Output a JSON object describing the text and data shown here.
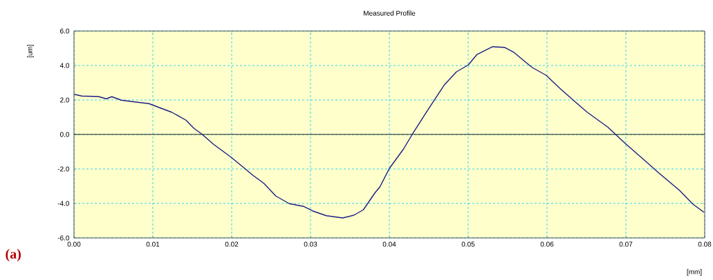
{
  "chart_data": {
    "type": "line",
    "title": "Measured Profile",
    "xlabel": "[mm]",
    "ylabel": "[um]",
    "annotations": [
      "(a)"
    ],
    "x": [
      0,
      0.001,
      0.0031,
      0.0041,
      0.0048,
      0.006,
      0.0077,
      0.0095,
      0.011,
      0.0124,
      0.0142,
      0.0152,
      0.0162,
      0.0177,
      0.0199,
      0.0215,
      0.0227,
      0.0241,
      0.0256,
      0.0273,
      0.0291,
      0.0303,
      0.032,
      0.0341,
      0.0355,
      0.0367,
      0.0382,
      0.0388,
      0.04,
      0.0418,
      0.0429,
      0.0447,
      0.047,
      0.0485,
      0.05,
      0.0511,
      0.0531,
      0.0546,
      0.0558,
      0.0581,
      0.0599,
      0.0616,
      0.0634,
      0.0651,
      0.0677,
      0.0699,
      0.0724,
      0.0742,
      0.0768,
      0.0785,
      0.0799
    ],
    "series": [
      {
        "color": "#1c1c84",
        "values": [
          2.33,
          2.23,
          2.2,
          2.07,
          2.19,
          1.99,
          1.89,
          1.79,
          1.53,
          1.29,
          0.83,
          0.36,
          0.03,
          -0.57,
          -1.31,
          -1.91,
          -2.37,
          -2.84,
          -3.57,
          -4.01,
          -4.17,
          -4.44,
          -4.71,
          -4.84,
          -4.68,
          -4.37,
          -3.37,
          -3.04,
          -1.97,
          -0.84,
          0,
          1.29,
          2.89,
          3.63,
          4.03,
          4.63,
          5.09,
          5.05,
          4.76,
          3.89,
          3.43,
          2.69,
          1.96,
          1.29,
          0.43,
          -0.51,
          -1.51,
          -2.24,
          -3.24,
          -4.04,
          -4.51
        ]
      }
    ],
    "xlim": [
      0,
      0.08
    ],
    "ylim": [
      -6,
      6
    ],
    "xticks": [
      {
        "value": 0,
        "label": "0.00"
      },
      0.01,
      0.02,
      0.03,
      0.04,
      0.05,
      0.06,
      0.07,
      0.08
    ],
    "yticks": [
      {
        "value": -6,
        "label": "-6.0"
      },
      {
        "value": -4,
        "label": "-4.0"
      },
      {
        "value": -2,
        "label": "-2.0"
      },
      {
        "value": 0,
        "label": "0.0"
      },
      {
        "value": 2,
        "label": "2.0"
      },
      {
        "value": 4,
        "label": "4.0"
      },
      {
        "value": 6,
        "label": "6.0"
      }
    ],
    "ref_lines": [
      {
        "axis": "y",
        "value": 0,
        "color": "#000000"
      }
    ],
    "grid": true,
    "marker": "none",
    "line_style": "solid"
  }
}
